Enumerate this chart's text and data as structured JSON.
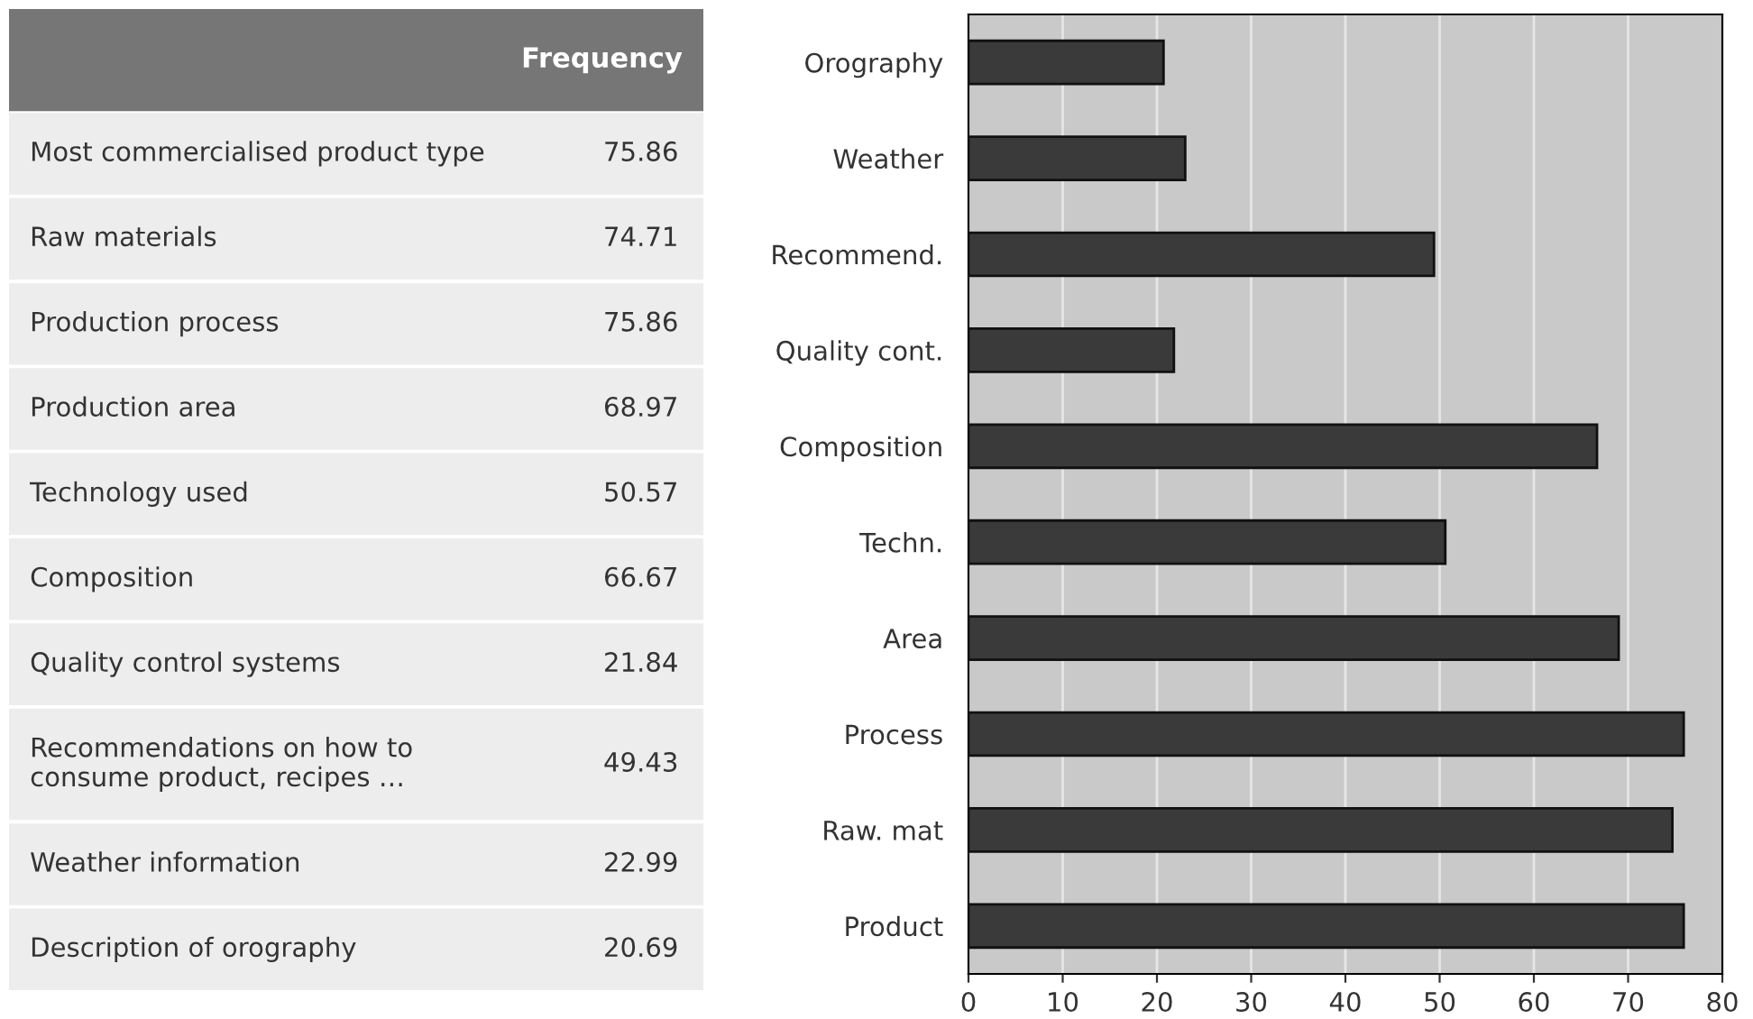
{
  "chart_data": [
    {
      "type": "other",
      "title": "Frequency",
      "categories": [
        "Most commercialised product type",
        "Raw materials",
        "Production process",
        "Production area",
        "Technology used",
        "Composition",
        "Quality control systems",
        "Recommendations on how to\nconsume product, recipes …",
        "Weather information",
        "Description of orography"
      ],
      "values": [
        75.86,
        74.71,
        75.86,
        68.97,
        50.57,
        66.67,
        21.84,
        49.43,
        22.99,
        20.69
      ],
      "data_labels": true,
      "color": "#ededed"
    },
    {
      "type": "bar",
      "orientation": "horizontal",
      "categories": [
        "Orography",
        "Weather",
        "Recommend.",
        "Quality cont.",
        "Composition",
        "Techn.",
        "Area",
        "Process",
        "Raw. mat",
        "Product"
      ],
      "values": [
        20.7,
        23.0,
        49.4,
        21.8,
        66.7,
        50.6,
        69.0,
        75.9,
        74.7,
        75.9
      ],
      "color": "#3a3a3a",
      "xlim": [
        0,
        80
      ],
      "xticks": [
        0,
        10,
        20,
        30,
        40,
        50,
        60,
        70,
        80
      ],
      "grid": "x"
    }
  ]
}
